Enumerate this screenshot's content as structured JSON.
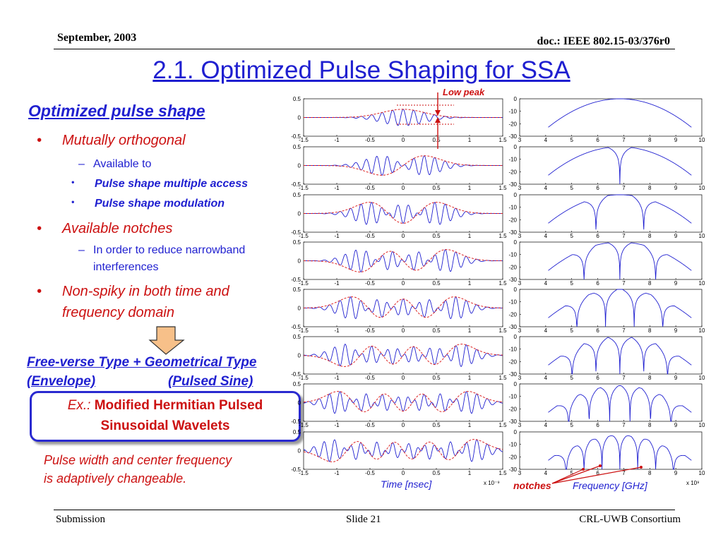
{
  "header": {
    "date": "September, 2003",
    "doc": "doc.: IEEE 802.15-03/376r0"
  },
  "title": "2.1. Optimized Pulse Shaping for SSA",
  "left": {
    "subtitle": "Optimized pulse shape",
    "bullets": [
      {
        "level": 1,
        "marker": "•",
        "text": "Mutually orthogonal"
      },
      {
        "level": 2,
        "marker": "–",
        "text": "Available to"
      },
      {
        "level": 3,
        "marker": "•",
        "text": "Pulse shape multiple access"
      },
      {
        "level": 3,
        "marker": "•",
        "text": "Pulse shape modulation"
      },
      {
        "level": 1,
        "marker": "•",
        "text": "Available notches"
      },
      {
        "level": 2,
        "marker": "–",
        "text": "In order to reduce narrowband"
      },
      {
        "level": 2,
        "marker": "",
        "text": "interferences"
      },
      {
        "level": 1,
        "marker": "•",
        "text": "Non-spiky in both time and"
      },
      {
        "level": 1,
        "marker": "",
        "text": "frequency domain"
      }
    ],
    "type_line": "Free-verse Type + Geometrical Type",
    "envelope_label": "(Envelope)",
    "pulsed_label": "(Pulsed Sine)",
    "example_label": "Ex.:",
    "example_text_1": "Modified Hermitian Pulsed",
    "example_text_2": "Sinusoidal Wavelets",
    "note_1": "Pulse width and center frequency",
    "note_2": "is adaptively changeable."
  },
  "plots": {
    "annotation_low_peak": "Low peak",
    "time_xlabel": "Time [nsec]",
    "time_exponent": "x 10⁻⁹",
    "freq_xlabel": "Frequency [GHz]",
    "freq_exponent": "x 10⁹",
    "notches_label": "notches",
    "colors": {
      "waveform": "#1f1fd0",
      "envelope": "#dd2222",
      "spectrum": "#1f1fd0",
      "annotation": "#cc1111"
    }
  },
  "chart_data": [
    {
      "type": "line",
      "title": "",
      "xlabel": "Time [nsec]",
      "ylabel": "",
      "xlim": [
        -1.5,
        1.5
      ],
      "ylim": [
        -0.5,
        0.5
      ],
      "x_ticks": [
        "-1.5",
        "-1",
        "-0.5",
        "0",
        "0.5",
        "1",
        "1.5"
      ],
      "y_ticks": [
        "0.5",
        "0",
        "-0.5"
      ],
      "x_exponent": "x 10⁻⁹",
      "panels": 8,
      "series_per_panel": [
        "waveform",
        "envelope"
      ],
      "hermite_order": [
        0,
        1,
        2,
        3,
        4,
        5,
        6,
        7
      ],
      "grid": false
    },
    {
      "type": "line",
      "title": "",
      "xlabel": "Frequency [GHz]",
      "ylabel": "",
      "xlim": [
        3,
        10
      ],
      "ylim": [
        -30,
        0
      ],
      "x_ticks": [
        "3",
        "4",
        "5",
        "6",
        "7",
        "8",
        "9",
        "10"
      ],
      "y_ticks": [
        "0",
        "-10",
        "-20",
        "-30"
      ],
      "x_exponent": "x 10⁹",
      "panels": 8,
      "notches_per_panel": [
        0,
        1,
        2,
        3,
        4,
        5,
        6,
        7
      ],
      "grid": false
    }
  ],
  "footer": {
    "left": "Submission",
    "center": "Slide 21",
    "right": "CRL-UWB Consortium"
  }
}
